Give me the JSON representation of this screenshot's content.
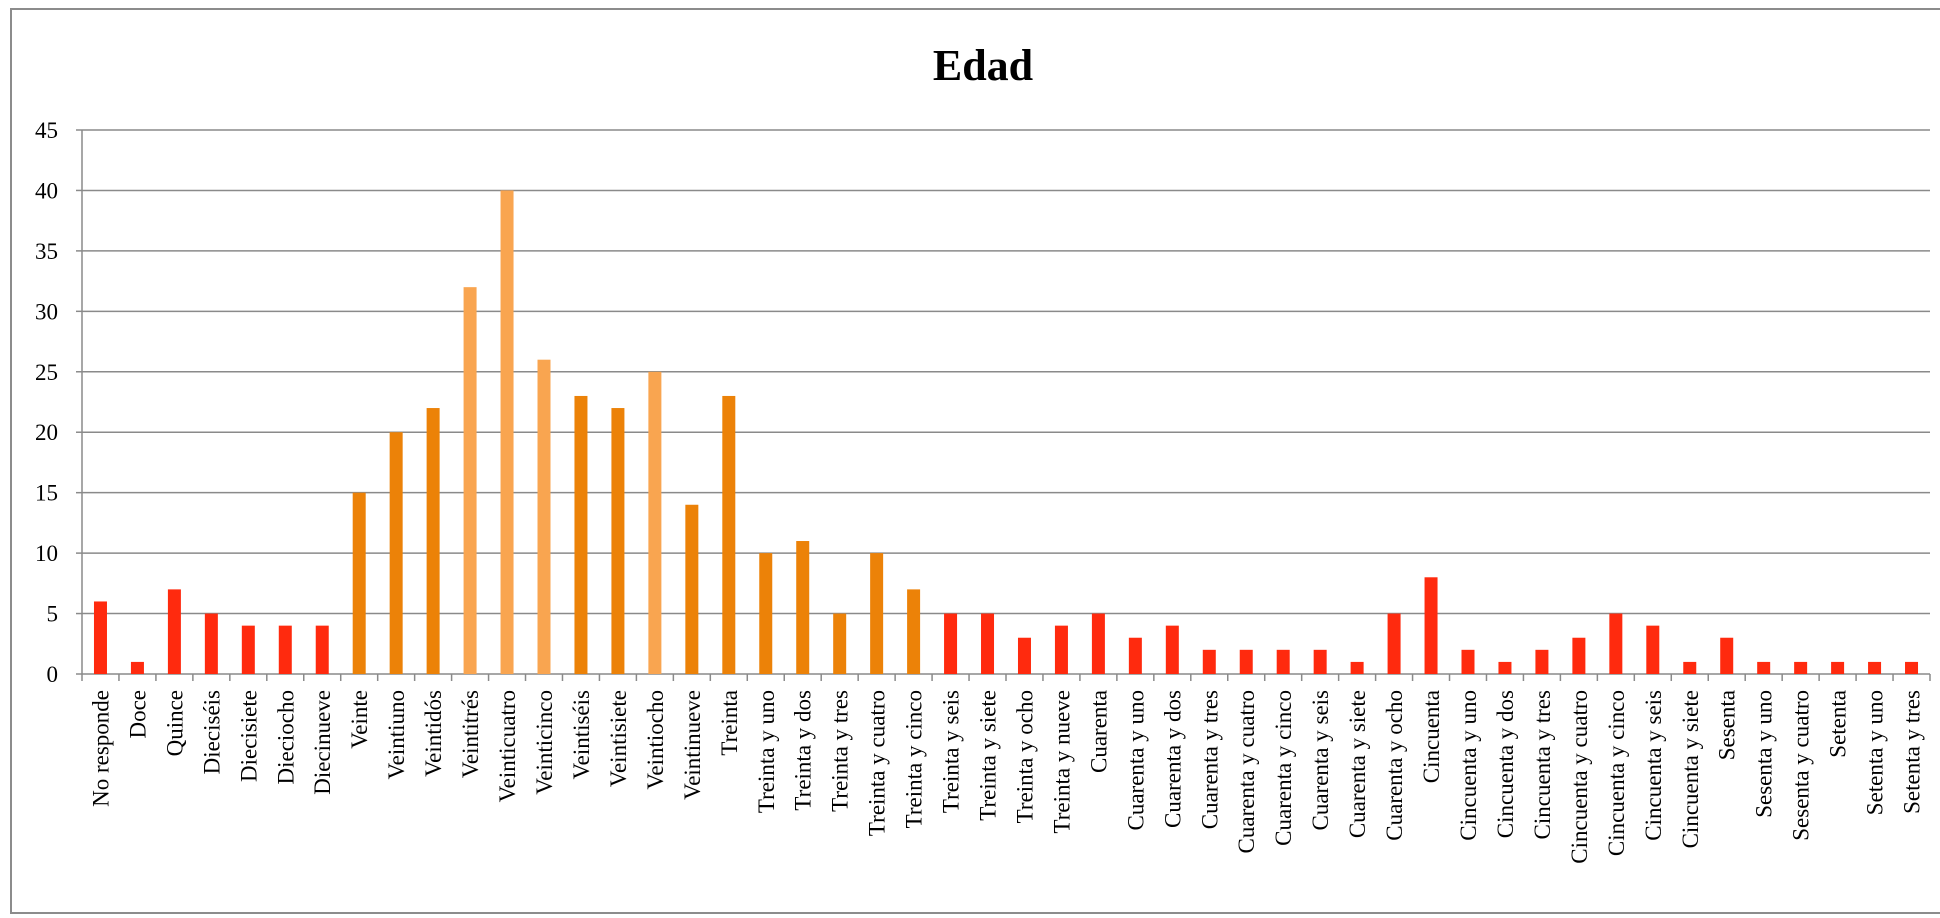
{
  "chart_data": {
    "type": "bar",
    "title": "Edad",
    "xlabel": "",
    "ylabel": "",
    "ylim": [
      0,
      45
    ],
    "yticks": [
      0,
      5,
      10,
      15,
      20,
      25,
      30,
      35,
      40,
      45
    ],
    "grid": true,
    "legend": "none",
    "colors": {
      "red": "#ff2a0e",
      "orange": "#ec8208",
      "light_orange": "#f9a550"
    },
    "categories": [
      "No responde",
      "Doce",
      "Quince",
      "Dieciséis",
      "Diecisiete",
      "Dieciocho",
      "Diecinueve",
      "Veinte",
      "Veintiuno",
      "Veintidós",
      "Veintitrés",
      "Veinticuatro",
      "Veinticinco",
      "Veintiséis",
      "Veintisiete",
      "Veintiocho",
      "Veintinueve",
      "Treinta",
      "Treinta y uno",
      "Treinta y dos",
      "Treinta y tres",
      "Treinta y cuatro",
      "Treinta y cinco",
      "Treinta y seis",
      "Treinta y siete",
      "Treinta y ocho",
      "Treinta y nueve",
      "Cuarenta",
      "Cuarenta y uno",
      "Cuarenta y dos",
      "Cuarenta y tres",
      "Cuarenta y cuatro",
      "Cuarenta y cinco",
      "Cuarenta y seis",
      "Cuarenta y siete",
      "Cuarenta y ocho",
      "Cincuenta",
      "Cincuenta y uno",
      "Cincuenta y dos",
      "Cincuenta y tres",
      "Cincuenta y cuatro",
      "Cincuenta y cinco",
      "Cincuenta y seis",
      "Cincuenta y siete",
      "Sesenta",
      "Sesenta y uno",
      "Sesenta y cuatro",
      "Setenta",
      "Setenta y uno",
      "Setenta y tres"
    ],
    "values": [
      6,
      1,
      7,
      5,
      4,
      4,
      4,
      15,
      20,
      22,
      32,
      40,
      26,
      23,
      22,
      25,
      14,
      23,
      10,
      11,
      5,
      10,
      7,
      5,
      5,
      3,
      4,
      5,
      3,
      4,
      2,
      2,
      2,
      2,
      1,
      5,
      8,
      2,
      1,
      2,
      3,
      5,
      4,
      1,
      3,
      1,
      1,
      1,
      1,
      1
    ],
    "bar_colors": [
      "red",
      "red",
      "red",
      "red",
      "red",
      "red",
      "red",
      "orange",
      "orange",
      "orange",
      "light_orange",
      "light_orange",
      "light_orange",
      "orange",
      "orange",
      "light_orange",
      "orange",
      "orange",
      "orange",
      "orange",
      "orange",
      "orange",
      "orange",
      "red",
      "red",
      "red",
      "red",
      "red",
      "red",
      "red",
      "red",
      "red",
      "red",
      "red",
      "red",
      "red",
      "red",
      "red",
      "red",
      "red",
      "red",
      "red",
      "red",
      "red",
      "red",
      "red",
      "red",
      "red",
      "red",
      "red"
    ]
  }
}
